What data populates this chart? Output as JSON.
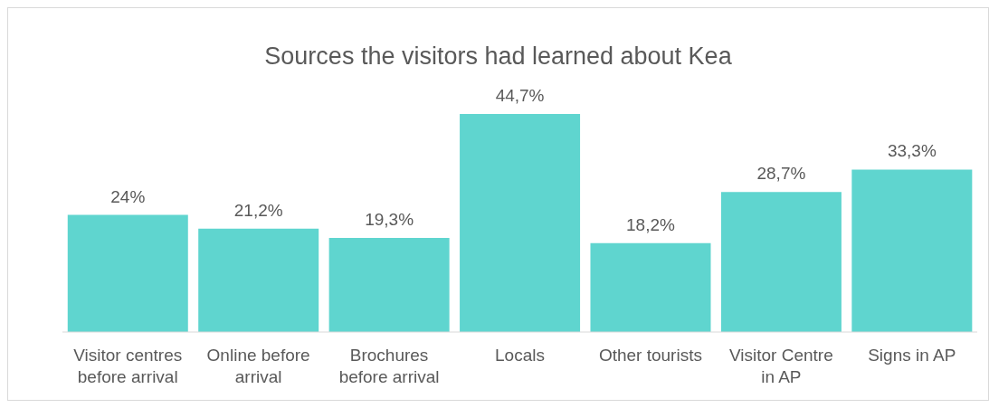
{
  "chart_data": {
    "type": "bar",
    "title": "Sources the visitors had learned about Kea",
    "categories": [
      "Visitor centres before arrival",
      "Online before arrival",
      "Brochures before arrival",
      "Locals",
      "Other tourists",
      "Visitor Centre in AP",
      "Signs in AP"
    ],
    "values": [
      24,
      21.2,
      19.3,
      44.7,
      18.2,
      28.7,
      33.3
    ],
    "value_labels": [
      "24%",
      "21,2%",
      "19,3%",
      "44,7%",
      "18,2%",
      "28,7%",
      "33,3%"
    ],
    "color": "#5fd5cf"
  }
}
